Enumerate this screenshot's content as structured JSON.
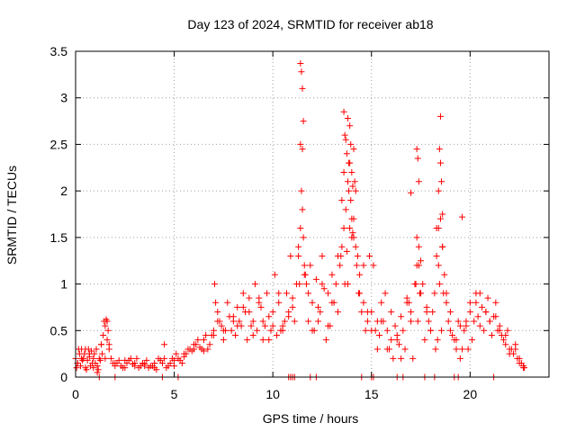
{
  "chart_data": {
    "type": "scatter",
    "title": "Day 123 of 2024, SRMTID for receiver ab18",
    "xlabel": "GPS time / hours",
    "ylabel": "SRMTID / TECUs",
    "xlim": [
      0,
      24
    ],
    "ylim": [
      0,
      3.5
    ],
    "xticks": [
      0,
      5,
      10,
      15,
      20
    ],
    "xtick_labels": [
      "0",
      "5",
      "10",
      "15",
      "20"
    ],
    "yticks": [
      0,
      0.5,
      1,
      1.5,
      2,
      2.5,
      3,
      3.5
    ],
    "ytick_labels": [
      "0",
      "0.5",
      "1",
      "1.5",
      "2",
      "2.5",
      "3",
      "3.5"
    ],
    "grid": true,
    "marker": "+",
    "series": [
      {
        "name": "SRMTID",
        "color": "#ff0000",
        "x": [
          0.0,
          0.1,
          0.2,
          0.3,
          0.4,
          0.5,
          0.6,
          0.7,
          0.8,
          0.9,
          1.0,
          1.1,
          1.2,
          1.3,
          1.4,
          1.5,
          1.55,
          1.6,
          1.65,
          1.7,
          1.8,
          1.9,
          2.0,
          2.2,
          2.4,
          2.6,
          2.8,
          3.0,
          3.2,
          3.4,
          3.6,
          3.8,
          4.0,
          4.2,
          4.4,
          4.5,
          4.6,
          4.8,
          5.0,
          5.2,
          5.4,
          5.6,
          5.8,
          6.0,
          6.2,
          6.4,
          6.6,
          6.8,
          7.0,
          7.1,
          7.2,
          7.4,
          7.6,
          7.8,
          8.0,
          8.2,
          8.4,
          8.6,
          8.8,
          9.0,
          9.2,
          9.4,
          9.6,
          9.8,
          10.0,
          10.2,
          10.4,
          10.6,
          10.8,
          11.0,
          11.2,
          11.3,
          11.4,
          11.45,
          11.5,
          11.55,
          11.6,
          11.7,
          11.8,
          12.0,
          12.2,
          12.4,
          12.6,
          12.8,
          13.0,
          13.2,
          13.4,
          13.5,
          13.6,
          13.7,
          13.8,
          13.9,
          14.0,
          14.1,
          14.2,
          14.3,
          14.4,
          14.6,
          14.8,
          15.0,
          15.2,
          15.4,
          15.6,
          15.8,
          16.0,
          16.2,
          16.4,
          16.6,
          16.8,
          17.0,
          17.2,
          17.3,
          17.4,
          17.5,
          17.6,
          17.8,
          18.0,
          18.2,
          18.3,
          18.4,
          18.5,
          18.6,
          18.7,
          18.8,
          19.0,
          19.2,
          19.4,
          19.6,
          19.8,
          20.0,
          20.2,
          20.4,
          20.6,
          20.8,
          21.0,
          21.2,
          21.4,
          21.6,
          21.8,
          22.0,
          22.2,
          22.4,
          22.6,
          22.7,
          0.05,
          0.15,
          0.25,
          0.35,
          0.45,
          0.55,
          0.65,
          0.75,
          0.85,
          0.95,
          1.05,
          1.15,
          1.25,
          1.35,
          1.45,
          2.1,
          2.3,
          2.5,
          2.7,
          2.9,
          3.1,
          3.3,
          3.5,
          3.7,
          3.9,
          4.1,
          4.3,
          4.7,
          4.9,
          5.1,
          5.3,
          5.5,
          5.7,
          5.9,
          6.1,
          6.3,
          6.5,
          6.7,
          6.9,
          7.05,
          7.3,
          7.5,
          7.7,
          7.9,
          8.1,
          8.3,
          8.5,
          8.7,
          8.9,
          9.1,
          9.3,
          9.5,
          9.7,
          9.9,
          10.1,
          10.3,
          10.5,
          10.7,
          10.9,
          11.1,
          11.35,
          11.65,
          11.9,
          12.1,
          12.3,
          12.5,
          12.7,
          12.9,
          13.1,
          13.3,
          13.45,
          13.65,
          13.75,
          13.85,
          13.95,
          14.05,
          14.15,
          14.25,
          14.35,
          14.5,
          14.7,
          14.9,
          15.1,
          15.3,
          15.5,
          15.7,
          15.9,
          16.1,
          16.3,
          16.5,
          16.7,
          16.9,
          17.1,
          17.25,
          17.35,
          17.45,
          17.7,
          17.9,
          18.1,
          18.25,
          18.35,
          18.45,
          18.55,
          18.65,
          18.9,
          19.1,
          19.3,
          19.5,
          19.7,
          19.9,
          20.1,
          20.3,
          20.5,
          20.7,
          20.9,
          21.1,
          21.3,
          21.5,
          21.7,
          21.9,
          22.1,
          22.3,
          22.5,
          22.75,
          0.1,
          0.3,
          0.5,
          0.7,
          0.9,
          1.1,
          1.3,
          1.5,
          1.6,
          1.7,
          2.0,
          2.5,
          3.0,
          3.5,
          4.0,
          4.5,
          5.0,
          5.5,
          6.0,
          6.5,
          7.0,
          7.2,
          7.5,
          8.0,
          8.2,
          8.5,
          8.8,
          9.0,
          9.3,
          9.5,
          9.8,
          10.0,
          10.3,
          10.5,
          10.8,
          11.0,
          11.3,
          11.4,
          11.5,
          11.6,
          11.8,
          12.0,
          12.3,
          12.5,
          12.8,
          13.0,
          13.3,
          13.5,
          13.6,
          13.8,
          13.9,
          14.0,
          14.1,
          14.2,
          14.4,
          14.6,
          14.8,
          15.0,
          15.3,
          15.5,
          15.8,
          16.0,
          16.3,
          16.5,
          16.8,
          17.0,
          17.3,
          17.4,
          17.5,
          17.8,
          18.0,
          18.3,
          18.4,
          18.5,
          18.6,
          18.8,
          19.0,
          19.3,
          19.5,
          19.8,
          20.0,
          20.3,
          20.5,
          20.8,
          21.0,
          21.3,
          21.5,
          21.8,
          22.0,
          22.3,
          22.5,
          22.7,
          11.4,
          11.45,
          11.5,
          11.55,
          13.6,
          13.65,
          13.7,
          13.75,
          13.8,
          13.85,
          13.9,
          13.95,
          14.0,
          14.05,
          14.1,
          17.3,
          17.35,
          17.4,
          18.4,
          18.45,
          18.5,
          18.55,
          18.6,
          17.0,
          19.6,
          10.8,
          10.9,
          11.0,
          11.1,
          11.9,
          12.2,
          14.5,
          15.0,
          15.1,
          16.3,
          16.6,
          17.7,
          18.2,
          19.2,
          19.4,
          21.2,
          4.4,
          5.2,
          2.0,
          1.2
        ],
        "y": [
          0.2,
          0.15,
          0.25,
          0.3,
          0.2,
          0.1,
          0.18,
          0.22,
          0.28,
          0.2,
          0.15,
          0.12,
          0.2,
          0.35,
          0.45,
          0.55,
          0.62,
          0.6,
          0.5,
          0.3,
          0.2,
          0.15,
          0.12,
          0.18,
          0.1,
          0.15,
          0.2,
          0.12,
          0.1,
          0.15,
          0.18,
          0.12,
          0.1,
          0.2,
          0.15,
          0.35,
          0.1,
          0.15,
          0.12,
          0.2,
          0.15,
          0.25,
          0.3,
          0.35,
          0.4,
          0.3,
          0.45,
          0.35,
          0.5,
          0.8,
          0.7,
          0.55,
          0.5,
          0.65,
          0.6,
          0.75,
          0.55,
          0.7,
          0.85,
          0.6,
          0.5,
          0.75,
          0.55,
          0.65,
          0.7,
          0.45,
          0.5,
          0.6,
          0.7,
          0.85,
          1.0,
          1.3,
          1.6,
          2.0,
          2.45,
          1.5,
          1.2,
          1.0,
          0.9,
          0.8,
          1.05,
          0.7,
          0.95,
          0.9,
          1.1,
          1.0,
          1.2,
          1.4,
          1.6,
          1.8,
          2.1,
          2.3,
          1.7,
          1.5,
          1.4,
          1.3,
          1.1,
          0.8,
          0.6,
          0.7,
          0.5,
          0.45,
          0.6,
          0.5,
          0.4,
          0.55,
          0.35,
          0.5,
          0.8,
          0.7,
          1.0,
          1.2,
          1.4,
          1.25,
          1.0,
          0.7,
          0.5,
          0.9,
          1.3,
          1.6,
          1.7,
          1.4,
          1.1,
          0.8,
          0.5,
          0.4,
          0.6,
          0.3,
          0.55,
          0.7,
          0.6,
          0.65,
          0.75,
          0.7,
          0.6,
          0.65,
          0.5,
          0.45,
          0.35,
          0.3,
          0.25,
          0.2,
          0.15,
          0.12,
          0.1,
          0.3,
          0.12,
          0.18,
          0.25,
          0.08,
          0.3,
          0.12,
          0.15,
          0.25,
          0.3,
          0.08,
          0.18,
          0.25,
          0.6,
          0.15,
          0.12,
          0.1,
          0.18,
          0.14,
          0.2,
          0.12,
          0.14,
          0.1,
          0.12,
          0.08,
          0.18,
          0.12,
          0.2,
          0.25,
          0.18,
          0.22,
          0.3,
          0.28,
          0.35,
          0.32,
          0.4,
          0.3,
          0.45,
          1.0,
          0.6,
          0.4,
          0.8,
          0.5,
          0.45,
          0.6,
          0.9,
          0.4,
          0.55,
          1.0,
          0.85,
          0.4,
          0.9,
          0.5,
          1.1,
          0.8,
          0.55,
          0.9,
          1.3,
          0.6,
          1.0,
          1.1,
          1.2,
          0.5,
          0.6,
          1.3,
          0.4,
          0.55,
          0.8,
          0.7,
          1.3,
          1.0,
          1.35,
          2.0,
          1.9,
          1.55,
          2.1,
          1.2,
          0.9,
          0.7,
          0.5,
          1.3,
          1.2,
          0.3,
          0.6,
          0.9,
          0.3,
          0.2,
          0.45,
          0.2,
          0.3,
          0.8,
          0.2,
          1.0,
          0.6,
          0.9,
          0.4,
          0.6,
          0.7,
          0.3,
          0.4,
          1.0,
          0.5,
          0.9,
          0.6,
          0.45,
          0.3,
          0.2,
          0.5,
          0.3,
          0.4,
          0.8,
          0.9,
          0.5,
          0.85,
          0.45,
          0.8,
          0.55,
          0.4,
          0.5,
          0.3,
          0.35,
          0.2,
          0.1,
          0.15,
          0.2,
          0.3,
          0.25,
          0.1,
          0.05,
          0.35,
          0.2,
          0.4,
          0.35,
          0.15,
          0.18,
          0.15,
          0.12,
          0.15,
          0.2,
          0.18,
          0.25,
          0.3,
          0.28,
          0.45,
          0.6,
          0.5,
          0.65,
          0.55,
          0.75,
          0.7,
          0.45,
          0.8,
          0.6,
          0.4,
          0.55,
          0.9,
          0.5,
          0.65,
          0.75,
          1.4,
          2.5,
          1.8,
          1.1,
          0.6,
          0.5,
          0.75,
          1.0,
          0.55,
          0.8,
          1.3,
          1.9,
          2.2,
          1.0,
          1.6,
          1.5,
          1.7,
          2.0,
          0.9,
          1.2,
          0.7,
          0.5,
          0.6,
          0.8,
          0.3,
          0.7,
          0.4,
          0.65,
          0.85,
          0.6,
          1.5,
          1.2,
          0.9,
          0.75,
          0.5,
          1.6,
          1.2,
          2.3,
          1.4,
          0.9,
          0.7,
          0.4,
          0.55,
          0.6,
          0.8,
          0.9,
          0.55,
          0.7,
          0.6,
          0.65,
          0.5,
          0.45,
          0.25,
          0.3,
          0.15,
          0.1,
          3.37,
          3.28,
          3.1,
          2.75,
          2.85,
          2.6,
          2.55,
          2.4,
          2.78,
          2.3,
          2.7,
          2.5,
          2.2,
          2.05,
          2.45,
          2.45,
          2.35,
          2.1,
          2.0,
          2.45,
          2.8,
          2.1,
          1.75,
          1.98,
          1.72,
          0.0,
          0.0,
          0.0,
          0.0,
          0.0,
          0.0,
          0.0,
          0.0,
          0.0,
          0.0,
          0.0,
          0.0,
          0.0,
          0.0,
          0.0,
          0.0,
          0.0,
          0.0,
          0.0,
          0.0
        ]
      }
    ]
  }
}
